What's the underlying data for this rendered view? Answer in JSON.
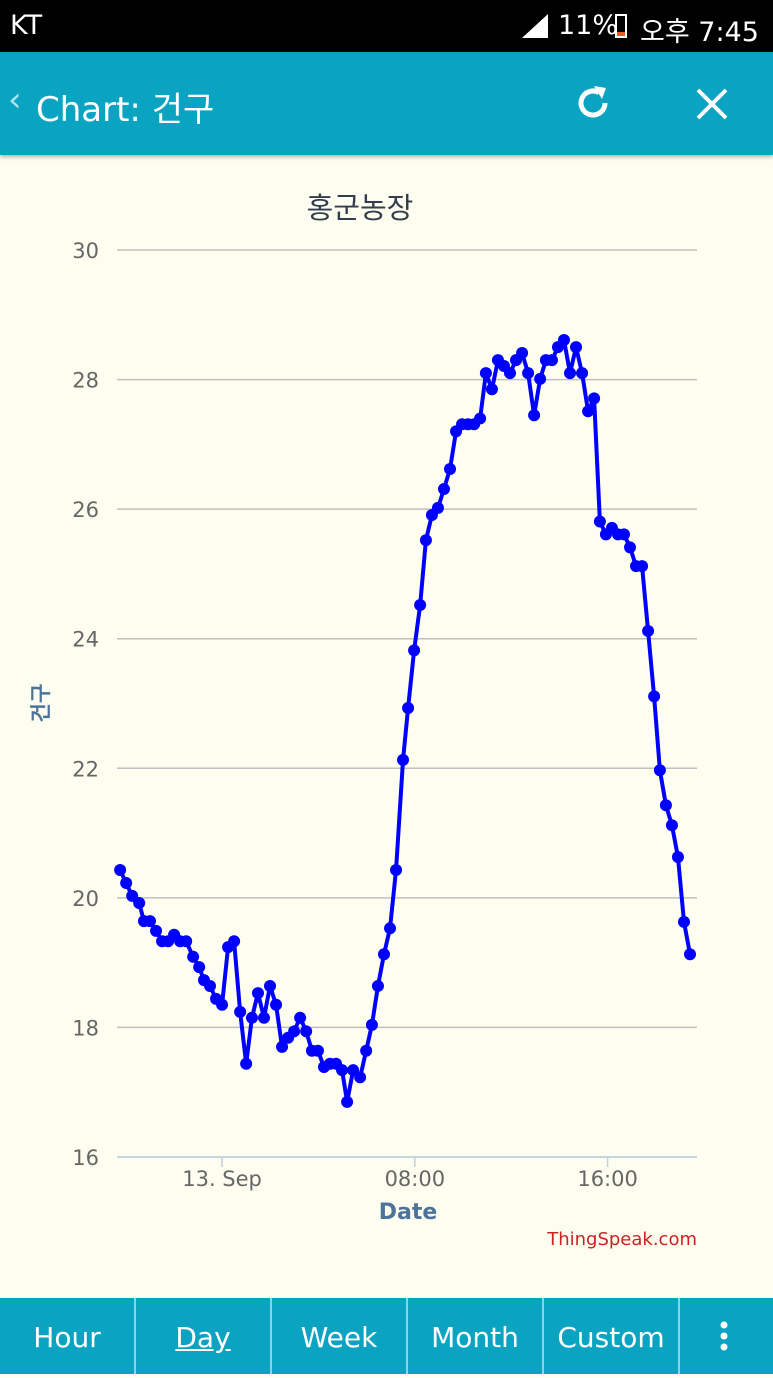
{
  "status_bar": {
    "carrier": "KT",
    "battery": "11%",
    "time": "오후 7:45"
  },
  "header": {
    "title": "Chart: 건구"
  },
  "chart_data": {
    "type": "line",
    "title": "홍군농장",
    "x_label": "Date",
    "y_label": "건구",
    "credit": "ThingSpeak.com",
    "x": [
      -4.23,
      -3.98,
      -3.73,
      -3.44,
      -3.24,
      -2.99,
      -2.74,
      -2.49,
      -2.24,
      -1.99,
      -1.74,
      -1.49,
      -1.2,
      -0.95,
      -0.75,
      -0.5,
      -0.25,
      0,
      0.25,
      0.5,
      0.75,
      1,
      1.24,
      1.49,
      1.74,
      1.99,
      2.24,
      2.49,
      2.74,
      2.99,
      3.24,
      3.49,
      3.73,
      3.98,
      4.23,
      4.48,
      4.73,
      4.98,
      5.19,
      5.44,
      5.73,
      5.98,
      6.22,
      6.47,
      6.72,
      6.97,
      7.22,
      7.51,
      7.72,
      7.97,
      8.22,
      8.46,
      8.71,
      8.96,
      9.21,
      9.46,
      9.71,
      9.96,
      10.21,
      10.46,
      10.71,
      10.95,
      11.2,
      11.45,
      11.7,
      11.95,
      12.2,
      12.45,
      12.7,
      12.95,
      13.2,
      13.44,
      13.69,
      13.94,
      14.19,
      14.44,
      14.69,
      14.94,
      15.19,
      15.44,
      15.68,
      15.93,
      16.18,
      16.43,
      16.68,
      16.93,
      17.18,
      17.43,
      17.68,
      17.93,
      18.17,
      18.42,
      18.67,
      18.92,
      19.17,
      19.42
    ],
    "series": [
      {
        "name": "건구",
        "color": "#0000ff",
        "values": [
          20.43,
          20.23,
          20.03,
          19.92,
          19.64,
          19.64,
          19.49,
          19.33,
          19.33,
          19.43,
          19.33,
          19.33,
          19.09,
          18.93,
          18.73,
          18.64,
          18.44,
          18.35,
          19.24,
          19.33,
          18.24,
          17.44,
          18.15,
          18.53,
          18.15,
          18.64,
          18.35,
          17.7,
          17.84,
          17.94,
          18.15,
          17.94,
          17.64,
          17.64,
          17.39,
          17.44,
          17.44,
          17.34,
          16.85,
          17.34,
          17.23,
          17.64,
          18.04,
          18.64,
          19.13,
          19.53,
          20.43,
          22.13,
          22.93,
          23.82,
          24.52,
          25.52,
          25.91,
          26.02,
          26.31,
          26.62,
          27.2,
          27.31,
          27.31,
          27.31,
          27.4,
          28.1,
          27.85,
          28.3,
          28.21,
          28.1,
          28.3,
          28.41,
          28.1,
          27.45,
          28.01,
          28.3,
          28.3,
          28.5,
          28.61,
          28.1,
          28.5,
          28.1,
          27.51,
          27.71,
          25.81,
          25.61,
          25.71,
          25.61,
          25.61,
          25.41,
          25.12,
          25.12,
          24.12,
          23.11,
          21.97,
          21.43,
          21.12,
          20.63,
          19.63,
          19.13
        ]
      }
    ],
    "xlim": [
      -4.36,
      19.71
    ],
    "xticks": [
      {
        "value": 0,
        "label": "13. Sep"
      },
      {
        "value": 8,
        "label": "08:00"
      },
      {
        "value": 16,
        "label": "16:00"
      }
    ],
    "ylim": [
      16,
      30
    ],
    "yticks": [
      16,
      18,
      20,
      22,
      24,
      26,
      28,
      30
    ],
    "grid": true
  },
  "tabs": [
    "Hour",
    "Day",
    "Week",
    "Month",
    "Custom"
  ]
}
